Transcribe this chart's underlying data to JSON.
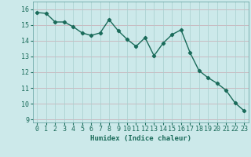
{
  "x": [
    0,
    1,
    2,
    3,
    4,
    5,
    6,
    7,
    8,
    9,
    10,
    11,
    12,
    13,
    14,
    15,
    16,
    17,
    18,
    19,
    20,
    21,
    22,
    23
  ],
  "y": [
    15.8,
    15.75,
    15.2,
    15.2,
    14.9,
    14.5,
    14.35,
    14.5,
    15.35,
    14.65,
    14.1,
    13.65,
    14.2,
    13.05,
    13.85,
    14.4,
    14.7,
    13.25,
    12.1,
    11.65,
    11.3,
    10.85,
    10.05,
    9.55
  ],
  "line_color": "#1a6b5a",
  "marker": "D",
  "marker_size": 2.2,
  "bg_color": "#cce9ea",
  "grid_color_h": "#c9a8b0",
  "grid_color_v": "#a8cece",
  "xlabel": "Humidex (Indice chaleur)",
  "xlim": [
    -0.5,
    23.5
  ],
  "ylim": [
    8.8,
    16.5
  ],
  "yticks": [
    9,
    10,
    11,
    12,
    13,
    14,
    15,
    16
  ],
  "xticks": [
    0,
    1,
    2,
    3,
    4,
    5,
    6,
    7,
    8,
    9,
    10,
    11,
    12,
    13,
    14,
    15,
    16,
    17,
    18,
    19,
    20,
    21,
    22,
    23
  ],
  "xlabel_fontsize": 6.5,
  "tick_fontsize": 6,
  "line_width": 1.0
}
